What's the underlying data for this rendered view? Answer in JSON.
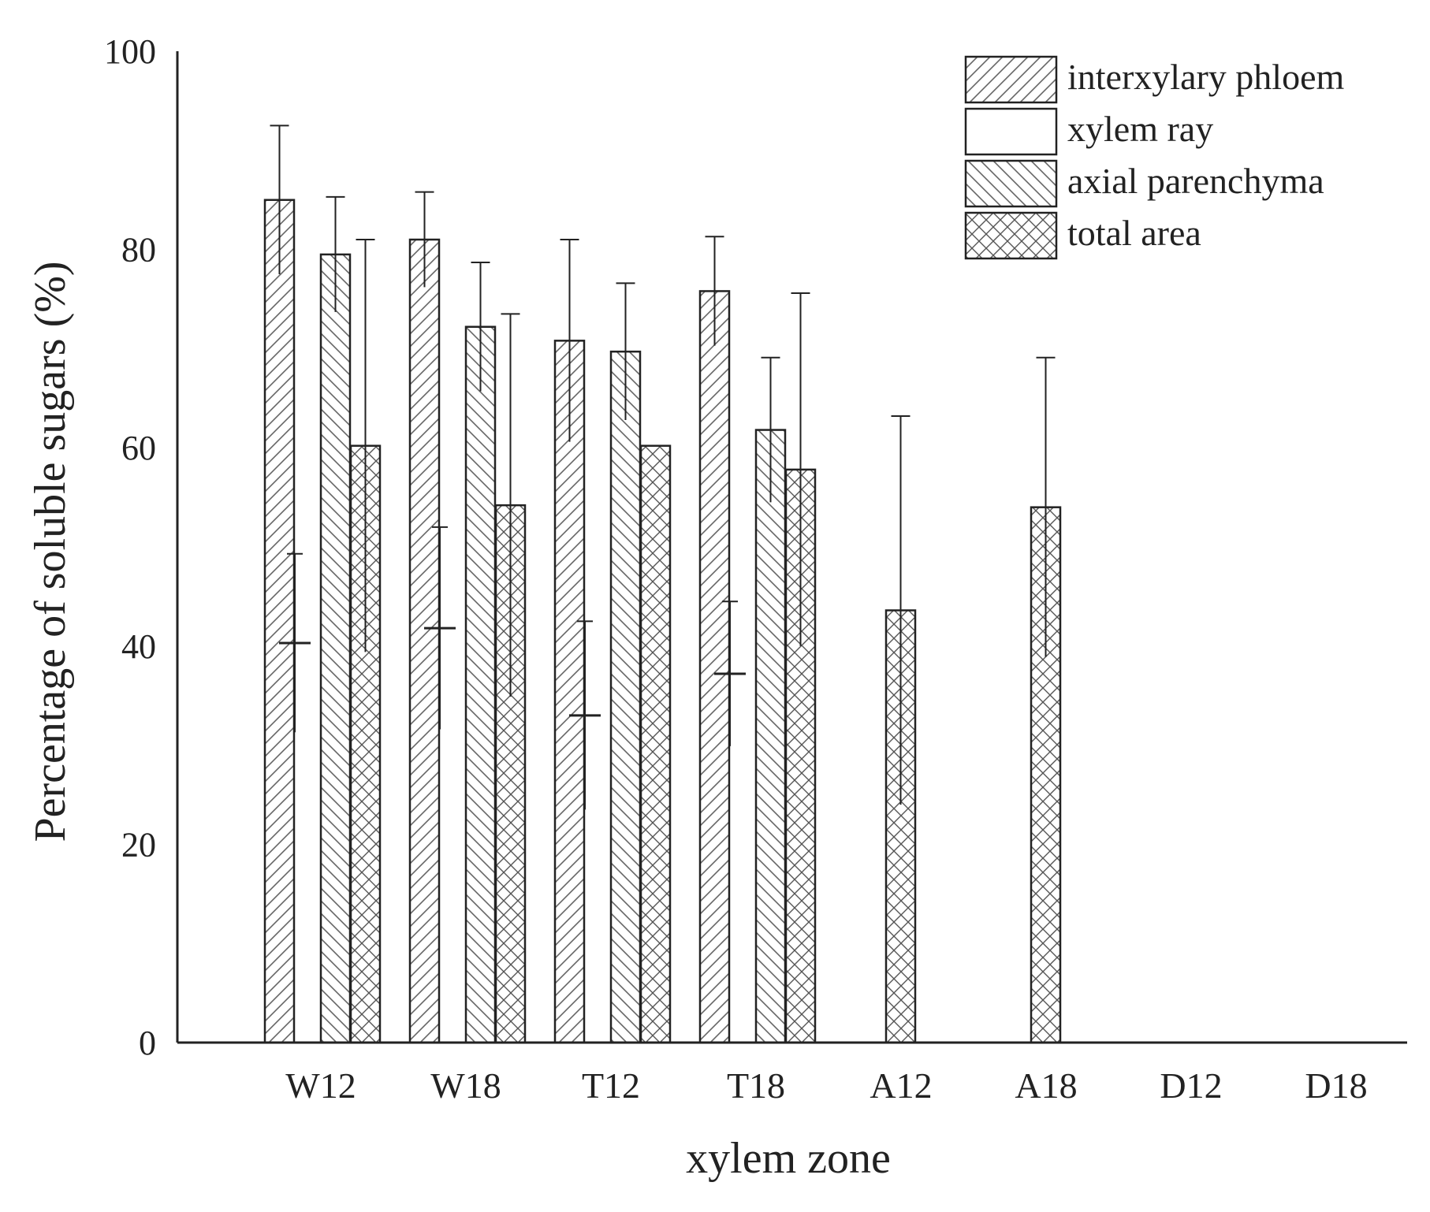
{
  "chart_data": {
    "type": "bar",
    "categories": [
      "W12",
      "W18",
      "T12",
      "T18",
      "A12",
      "A18",
      "D12",
      "D18"
    ],
    "series": [
      {
        "name": "interxylary phloem",
        "values": [
          85.0,
          81.0,
          70.8,
          75.8,
          null,
          null,
          null,
          null
        ],
        "errors": [
          7.5,
          4.8,
          10.2,
          5.5,
          null,
          null,
          null,
          null
        ]
      },
      {
        "name": "xylem ray",
        "values": [
          40.3,
          41.8,
          33.0,
          37.2,
          null,
          null,
          null,
          null
        ],
        "errors": [
          9.0,
          10.2,
          9.5,
          7.3,
          null,
          null,
          null,
          null
        ]
      },
      {
        "name": "axial parenchyma",
        "values": [
          79.5,
          72.2,
          69.7,
          61.8,
          null,
          null,
          null,
          null
        ],
        "errors": [
          5.8,
          6.5,
          6.9,
          7.3,
          null,
          null,
          null,
          null
        ]
      },
      {
        "name": "total area",
        "values": [
          60.2,
          54.2,
          60.2,
          57.8,
          43.6,
          54.0,
          null,
          null
        ],
        "errors": [
          20.8,
          19.3,
          null,
          17.8,
          19.6,
          15.1,
          null,
          null
        ]
      }
    ],
    "xlabel": "xylem zone",
    "ylabel": "Percentage of soluble sugars (%)",
    "ylim": [
      0,
      100
    ],
    "yticks": [
      "0",
      "20",
      "40",
      "60",
      "80",
      "100"
    ],
    "legend_position": "top-right",
    "grid": false,
    "colors": {
      "bar_stroke": "#222222",
      "hatch": "#555555",
      "background": "#ffffff"
    }
  }
}
